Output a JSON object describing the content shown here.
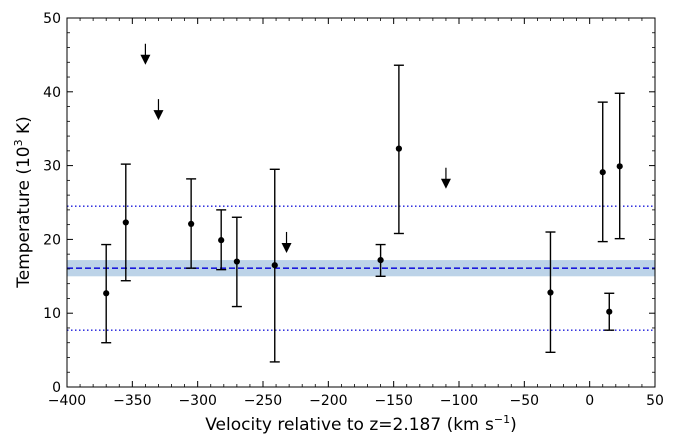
{
  "chart_data": {
    "type": "scatter",
    "xlabel": "Velocity relative to z=2.187 (km s",
    "xlabel_superscript": "−1",
    "xlabel_suffix": ")",
    "ylabel": "Temperature (10",
    "ylabel_superscript": "3",
    "ylabel_suffix": " K)",
    "xlim": [
      -400,
      50
    ],
    "ylim": [
      0,
      50
    ],
    "xticks": [
      -400,
      -350,
      -300,
      -250,
      -200,
      -150,
      -100,
      -50,
      0,
      50
    ],
    "xtick_labels": [
      "−400",
      "−350",
      "−300",
      "−250",
      "−200",
      "−150",
      "−100",
      "−50",
      "0",
      "50"
    ],
    "yticks": [
      0,
      10,
      20,
      30,
      40,
      50
    ],
    "ytick_labels": [
      "0",
      "10",
      "20",
      "30",
      "40",
      "50"
    ],
    "x_minor_step": 10,
    "y_minor_step": 2,
    "grid": false,
    "points": [
      {
        "x": -370,
        "y": 12.7,
        "lo": 6.0,
        "hi": 19.3
      },
      {
        "x": -355,
        "y": 22.3,
        "lo": 14.4,
        "hi": 30.2
      },
      {
        "x": -305,
        "y": 22.1,
        "lo": 16.1,
        "hi": 28.2
      },
      {
        "x": -282,
        "y": 19.9,
        "lo": 15.9,
        "hi": 24.0
      },
      {
        "x": -270,
        "y": 17.0,
        "lo": 10.9,
        "hi": 23.0
      },
      {
        "x": -241,
        "y": 16.5,
        "lo": 3.4,
        "hi": 29.5
      },
      {
        "x": -160,
        "y": 17.2,
        "lo": 15.0,
        "hi": 19.3
      },
      {
        "x": -146,
        "y": 32.3,
        "lo": 20.8,
        "hi": 43.6
      },
      {
        "x": -30,
        "y": 12.8,
        "lo": 4.7,
        "hi": 21.0
      },
      {
        "x": 10,
        "y": 29.1,
        "lo": 19.7,
        "hi": 38.6
      },
      {
        "x": 15,
        "y": 10.2,
        "lo": 7.7,
        "hi": 12.7
      },
      {
        "x": 23,
        "y": 29.9,
        "lo": 20.1,
        "hi": 39.8
      }
    ],
    "upper_limits": [
      {
        "x": -340,
        "y": 43.8
      },
      {
        "x": -330,
        "y": 36.3
      },
      {
        "x": -232,
        "y": 18.3
      },
      {
        "x": -110,
        "y": 27.0
      }
    ],
    "mean_line": {
      "y": 16.1,
      "band": [
        15.0,
        17.2
      ],
      "style": "dashed",
      "color": "#1a1adb",
      "band_color": "#bcd3e8"
    },
    "reference_lines": [
      {
        "y": 24.5,
        "style": "dotted",
        "color": "#1a1adb"
      },
      {
        "y": 7.7,
        "style": "dotted",
        "color": "#1a1adb"
      }
    ],
    "marker_color": "#000000"
  }
}
